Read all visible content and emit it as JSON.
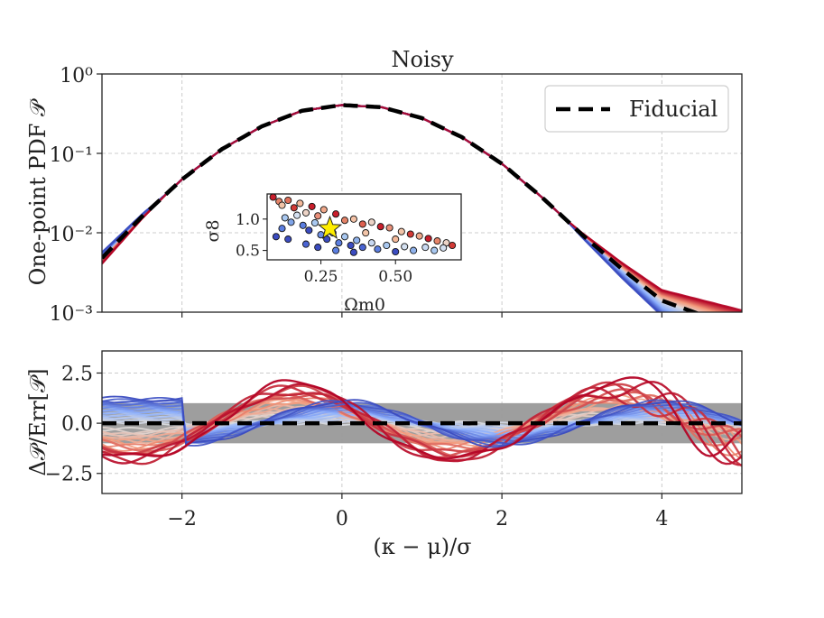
{
  "chart_data": [
    {
      "panel": "top",
      "type": "line",
      "title": "Noisy",
      "xlabel": "",
      "ylabel": "One-point PDF 𝒫",
      "xlim": [
        -3,
        5
      ],
      "ylim": [
        0.001,
        1
      ],
      "yscale": "log",
      "xticks": [
        -2,
        0,
        2,
        4
      ],
      "yticks": [
        {
          "value": 1,
          "label": "10⁰"
        },
        {
          "value": 0.1,
          "label": "10⁻¹"
        },
        {
          "value": 0.01,
          "label": "10⁻²"
        },
        {
          "value": 0.001,
          "label": "10⁻³"
        }
      ],
      "grid": true,
      "legend": {
        "position": "top-right",
        "entries": [
          "Fiducial"
        ]
      },
      "fiducial": {
        "name": "Fiducial",
        "style": "black dashed",
        "x": [
          -3,
          -2.5,
          -2,
          -1.5,
          -1,
          -0.5,
          0,
          0.5,
          1,
          1.5,
          2,
          2.5,
          3,
          3.5,
          4,
          4.4
        ],
        "y": [
          0.0048,
          0.016,
          0.047,
          0.113,
          0.219,
          0.344,
          0.406,
          0.381,
          0.278,
          0.16,
          0.074,
          0.028,
          0.0095,
          0.0035,
          0.0014,
          0.001
        ]
      },
      "colormap": "coolwarm",
      "n_model_curves": 40
    },
    {
      "panel": "inset",
      "type": "scatter",
      "xlabel": "Ωm0",
      "ylabel": "σ8",
      "xlim": [
        0.07,
        0.72
      ],
      "ylim": [
        0.35,
        1.4
      ],
      "xticks": [
        0.25,
        0.5
      ],
      "xtick_labels": [
        "0.25",
        "0.50"
      ],
      "yticks": [
        0.5,
        1.0
      ],
      "ytick_labels": [
        "0.5",
        "1.0"
      ],
      "star": {
        "x": 0.28,
        "y": 0.85,
        "color": "#ffee00"
      },
      "points": [
        {
          "x": 0.09,
          "y": 1.35,
          "c": "#c81e2c"
        },
        {
          "x": 0.11,
          "y": 1.28,
          "c": "#e6856a"
        },
        {
          "x": 0.12,
          "y": 1.22,
          "c": "#f2c4a8"
        },
        {
          "x": 0.14,
          "y": 1.3,
          "c": "#e0705a"
        },
        {
          "x": 0.16,
          "y": 1.18,
          "c": "#d23a36"
        },
        {
          "x": 0.18,
          "y": 1.25,
          "c": "#f4b99a"
        },
        {
          "x": 0.2,
          "y": 1.1,
          "c": "#ecd3c6"
        },
        {
          "x": 0.22,
          "y": 1.2,
          "c": "#c81e2c"
        },
        {
          "x": 0.24,
          "y": 1.05,
          "c": "#e9907a"
        },
        {
          "x": 0.26,
          "y": 1.15,
          "c": "#f0a88a"
        },
        {
          "x": 0.3,
          "y": 1.08,
          "c": "#c81e2c"
        },
        {
          "x": 0.33,
          "y": 0.98,
          "c": "#e38267"
        },
        {
          "x": 0.36,
          "y": 1.0,
          "c": "#f4c2a6"
        },
        {
          "x": 0.39,
          "y": 0.92,
          "c": "#dd6150"
        },
        {
          "x": 0.42,
          "y": 0.95,
          "c": "#ecd3c6"
        },
        {
          "x": 0.45,
          "y": 0.88,
          "c": "#c81e2c"
        },
        {
          "x": 0.48,
          "y": 0.86,
          "c": "#e9907a"
        },
        {
          "x": 0.52,
          "y": 0.8,
          "c": "#f2c4a8"
        },
        {
          "x": 0.55,
          "y": 0.76,
          "c": "#d23a36"
        },
        {
          "x": 0.58,
          "y": 0.73,
          "c": "#f0a88a"
        },
        {
          "x": 0.61,
          "y": 0.69,
          "c": "#c81e2c"
        },
        {
          "x": 0.64,
          "y": 0.65,
          "c": "#e6856a"
        },
        {
          "x": 0.67,
          "y": 0.62,
          "c": "#ecd3c6"
        },
        {
          "x": 0.69,
          "y": 0.58,
          "c": "#d23a36"
        },
        {
          "x": 0.5,
          "y": 0.68,
          "c": "#f4b99a"
        },
        {
          "x": 0.4,
          "y": 0.78,
          "c": "#f2c4a8"
        },
        {
          "x": 0.13,
          "y": 1.02,
          "c": "#a9c8f0"
        },
        {
          "x": 0.15,
          "y": 0.95,
          "c": "#7fa4e8"
        },
        {
          "x": 0.17,
          "y": 1.06,
          "c": "#d4e0f0"
        },
        {
          "x": 0.19,
          "y": 0.9,
          "c": "#5b7ee0"
        },
        {
          "x": 0.21,
          "y": 0.82,
          "c": "#3b4cc0"
        },
        {
          "x": 0.23,
          "y": 0.94,
          "c": "#a9c8f0"
        },
        {
          "x": 0.25,
          "y": 0.75,
          "c": "#6f90e4"
        },
        {
          "x": 0.27,
          "y": 0.68,
          "c": "#3b4cc0"
        },
        {
          "x": 0.29,
          "y": 0.78,
          "c": "#c8d9f2"
        },
        {
          "x": 0.31,
          "y": 0.62,
          "c": "#5b7ee0"
        },
        {
          "x": 0.33,
          "y": 0.72,
          "c": "#a9c8f0"
        },
        {
          "x": 0.35,
          "y": 0.58,
          "c": "#3b4cc0"
        },
        {
          "x": 0.37,
          "y": 0.66,
          "c": "#8fb2ec"
        },
        {
          "x": 0.39,
          "y": 0.55,
          "c": "#4a64d2"
        },
        {
          "x": 0.42,
          "y": 0.62,
          "c": "#c8d9f2"
        },
        {
          "x": 0.44,
          "y": 0.52,
          "c": "#5b7ee0"
        },
        {
          "x": 0.47,
          "y": 0.58,
          "c": "#a9c8f0"
        },
        {
          "x": 0.5,
          "y": 0.48,
          "c": "#3b4cc0"
        },
        {
          "x": 0.53,
          "y": 0.56,
          "c": "#d4e0f0"
        },
        {
          "x": 0.56,
          "y": 0.5,
          "c": "#8fb2ec"
        },
        {
          "x": 0.6,
          "y": 0.55,
          "c": "#c8d9f2"
        },
        {
          "x": 0.63,
          "y": 0.5,
          "c": "#a9c8f0"
        },
        {
          "x": 0.66,
          "y": 0.54,
          "c": "#d4e0f0"
        },
        {
          "x": 0.1,
          "y": 0.72,
          "c": "#3b4cc0"
        },
        {
          "x": 0.12,
          "y": 0.85,
          "c": "#5b7ee0"
        },
        {
          "x": 0.14,
          "y": 0.68,
          "c": "#3b4cc0"
        },
        {
          "x": 0.2,
          "y": 0.6,
          "c": "#4a64d2"
        },
        {
          "x": 0.24,
          "y": 0.55,
          "c": "#3b4cc0"
        },
        {
          "x": 0.3,
          "y": 0.5,
          "c": "#5b7ee0"
        },
        {
          "x": 0.36,
          "y": 0.47,
          "c": "#3b4cc0"
        }
      ]
    },
    {
      "panel": "bottom",
      "type": "line",
      "xlabel": "(κ − μ)/σ",
      "ylabel": "Δ𝒫/Err[𝒫]",
      "xlim": [
        -3,
        5
      ],
      "ylim": [
        -3.5,
        3.6
      ],
      "xticks": [
        -2,
        0,
        2,
        4
      ],
      "xtick_labels": [
        "−2",
        "0",
        "2",
        "4"
      ],
      "yticks": [
        2.5,
        0,
        -2.5
      ],
      "ytick_labels": [
        "2.5",
        "0.0",
        "−2.5"
      ],
      "grid": true,
      "reference_line": {
        "y": 0,
        "style": "black dashed"
      },
      "band": {
        "ymin": -1,
        "ymax": 1,
        "color": "#999999"
      },
      "colormap": "coolwarm",
      "n_model_curves": 40
    }
  ]
}
